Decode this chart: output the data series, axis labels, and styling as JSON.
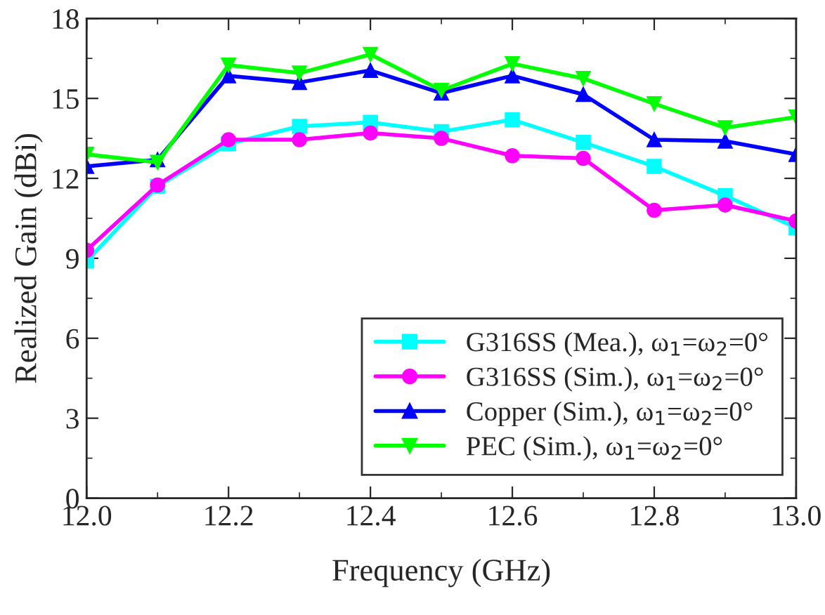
{
  "chart_data": {
    "type": "line",
    "xlabel": "Frequency (GHz)",
    "ylabel": "Realized Gain (dBi)",
    "x": [
      12.0,
      12.1,
      12.2,
      12.3,
      12.4,
      12.5,
      12.6,
      12.7,
      12.8,
      12.9,
      13.0
    ],
    "series": [
      {
        "name": "G316SS (Mea.), ω$_{1}$=ω$_{2}$=0°",
        "color": "#00ffff",
        "marker": "square",
        "values": [
          8.9,
          11.7,
          13.3,
          13.95,
          14.1,
          13.75,
          14.2,
          13.35,
          12.45,
          11.35,
          10.15
        ]
      },
      {
        "name": "G316SS (Sim.), ω$_{1}$=ω$_{2}$=0°",
        "color": "#ff00ff",
        "marker": "circle",
        "values": [
          9.3,
          11.75,
          13.45,
          13.45,
          13.7,
          13.5,
          12.85,
          12.75,
          10.8,
          11.0,
          10.4
        ]
      },
      {
        "name": "Copper (Sim.), ω$_{1}$=ω$_{2}$=0°",
        "color": "#0000ff",
        "marker": "triangle",
        "values": [
          12.45,
          12.7,
          15.85,
          15.6,
          16.05,
          15.2,
          15.85,
          15.15,
          13.45,
          13.4,
          12.9
        ]
      },
      {
        "name": "PEC (Sim.), ω$_{1}$=ω$_{2}$=0°",
        "color": "#00ff00",
        "marker": "triangle_down",
        "values": [
          12.9,
          12.6,
          16.25,
          15.95,
          16.65,
          15.3,
          16.3,
          15.75,
          14.8,
          13.9,
          14.3
        ]
      }
    ],
    "xlim": [
      12.0,
      13.0
    ],
    "xticks": [
      {
        "value": 12.0,
        "label": "12.0"
      },
      {
        "value": 12.1,
        "label": null
      },
      {
        "value": 12.2,
        "label": "12.2"
      },
      {
        "value": 12.3,
        "label": null
      },
      {
        "value": 12.4,
        "label": "12.4"
      },
      {
        "value": 12.5,
        "label": null
      },
      {
        "value": 12.6,
        "label": "12.6"
      },
      {
        "value": 12.7,
        "label": null
      },
      {
        "value": 12.8,
        "label": "12.8"
      },
      {
        "value": 12.9,
        "label": null
      },
      {
        "value": 13.0,
        "label": "13.0"
      }
    ],
    "ylim": [
      0,
      18
    ],
    "yticks": [
      0,
      {
        "value": 1.5,
        "label": null
      },
      3,
      {
        "value": 4.5,
        "label": null
      },
      6,
      {
        "value": 7.5,
        "label": null
      },
      9,
      {
        "value": 10.5,
        "label": null
      },
      12,
      {
        "value": 13.5,
        "label": null
      },
      15,
      {
        "value": 16.5,
        "label": null
      },
      18
    ],
    "grid": false,
    "legend": "bottom right",
    "line_style": "solid"
  }
}
